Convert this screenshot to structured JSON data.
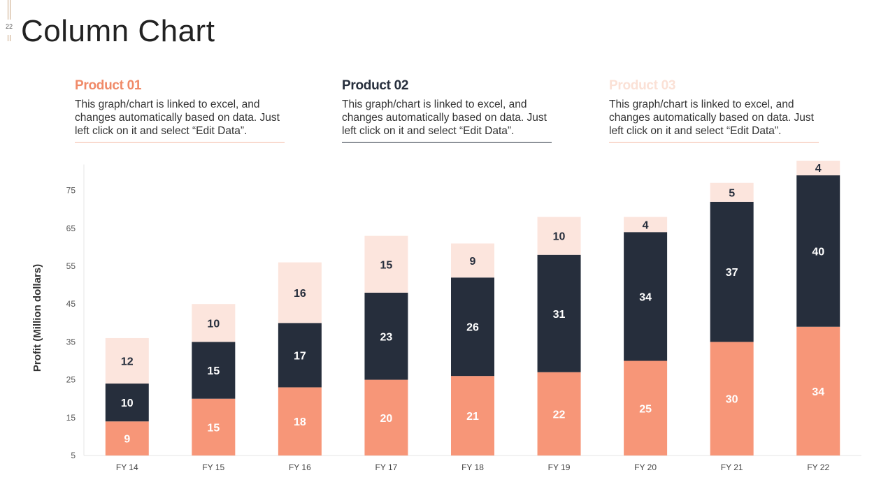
{
  "slide": {
    "number": "22",
    "title": "Column Chart"
  },
  "colors": {
    "product_01": "#f79678",
    "product_02": "#262e3c",
    "product_03": "#fce5dd",
    "product_03_title": "#fbe1d6",
    "accent": "#c9a583"
  },
  "products": [
    {
      "title": "Product 01",
      "description": "This graph/chart is linked to excel, and changes automatically based on data. Just left click on it and select “Edit Data”."
    },
    {
      "title": "Product 02",
      "description": "This graph/chart is linked to excel, and changes automatically based on data. Just left click on it and select “Edit Data”."
    },
    {
      "title": "Product 03",
      "description": "This graph/chart is linked to excel, and changes automatically based on data. Just left click on it and select “Edit Data”."
    }
  ],
  "chart_data": {
    "type": "bar",
    "stacked": true,
    "categories": [
      "FY 14",
      "FY 15",
      "FY 16",
      "FY 17",
      "FY 18",
      "FY 19",
      "FY 20",
      "FY 21",
      "FY 22"
    ],
    "series": [
      {
        "name": "Product 01",
        "values": [
          9,
          15,
          18,
          20,
          21,
          22,
          25,
          30,
          34
        ]
      },
      {
        "name": "Product 02",
        "values": [
          10,
          15,
          17,
          23,
          26,
          31,
          34,
          37,
          40
        ]
      },
      {
        "name": "Product 03",
        "values": [
          12,
          10,
          16,
          15,
          9,
          10,
          4,
          5,
          4
        ]
      }
    ],
    "ylabel": "Profit  (Million dollars)",
    "ylim": [
      5,
      80
    ],
    "yticks": [
      5,
      15,
      25,
      35,
      45,
      55,
      65,
      75
    ],
    "grid": false,
    "legend": "none"
  }
}
